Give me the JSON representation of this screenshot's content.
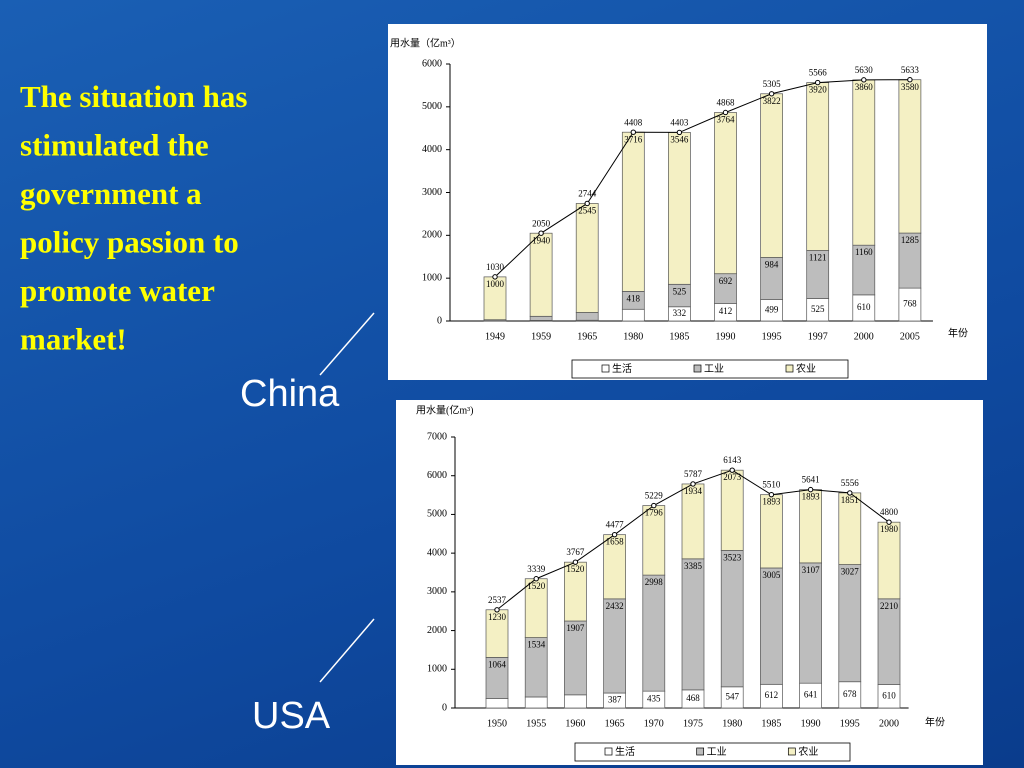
{
  "slide": {
    "text_lines": [
      "The situation has",
      "stimulated the",
      "government a",
      "policy passion to",
      "promote water",
      "market!"
    ],
    "chart_labels": [
      "China",
      "USA"
    ]
  },
  "chart_data": [
    {
      "type": "bar",
      "stacked": true,
      "y_label": "用水量（亿m³）",
      "x_label": "年份",
      "categories": [
        "1949",
        "1959",
        "1965",
        "1980",
        "1985",
        "1990",
        "1995",
        "1997",
        "2000",
        "2005"
      ],
      "series": [
        {
          "name": "生活",
          "color": "#ffffff",
          "values": [
            6,
            14,
            18,
            274,
            332,
            412,
            499,
            525,
            610,
            768
          ]
        },
        {
          "name": "工业",
          "color": "#bdbdbd",
          "values": [
            24,
            96,
            181,
            418,
            525,
            692,
            984,
            1121,
            1160,
            1285
          ]
        },
        {
          "name": "农业",
          "color": "#f4f0c4",
          "values": [
            1000,
            1940,
            2545,
            3716,
            3546,
            3764,
            3822,
            3920,
            3860,
            3580
          ]
        }
      ],
      "totals": [
        1030,
        2050,
        2744,
        4408,
        4403,
        4868,
        5305,
        5566,
        5630,
        5633
      ],
      "ylim": [
        0,
        6000
      ],
      "yticks": [
        0,
        1000,
        2000,
        3000,
        4000,
        5000,
        6000
      ],
      "legend": "bottom"
    },
    {
      "type": "bar",
      "stacked": true,
      "y_label": "用水量(亿m³)",
      "x_label": "年份",
      "categories": [
        "1950",
        "1955",
        "1960",
        "1965",
        "1970",
        "1975",
        "1980",
        "1985",
        "1990",
        "1995",
        "2000"
      ],
      "series": [
        {
          "name": "生活",
          "color": "#ffffff",
          "values": [
            243,
            285,
            340,
            387,
            435,
            468,
            547,
            612,
            641,
            678,
            610
          ]
        },
        {
          "name": "工业",
          "color": "#bdbdbd",
          "values": [
            1064,
            1534,
            1907,
            2432,
            2998,
            3385,
            3523,
            3005,
            3107,
            3027,
            2210
          ]
        },
        {
          "name": "农业",
          "color": "#f4f0c4",
          "values": [
            1230,
            1520,
            1520,
            1658,
            1796,
            1934,
            2073,
            1893,
            1893,
            1851,
            1980
          ]
        }
      ],
      "totals": [
        2537,
        3339,
        3767,
        4477,
        5229,
        5787,
        6143,
        5510,
        5641,
        5556,
        4800
      ],
      "ylim": [
        0,
        7000
      ],
      "yticks": [
        0,
        1000,
        2000,
        3000,
        4000,
        5000,
        6000,
        7000
      ],
      "legend": "bottom"
    }
  ]
}
